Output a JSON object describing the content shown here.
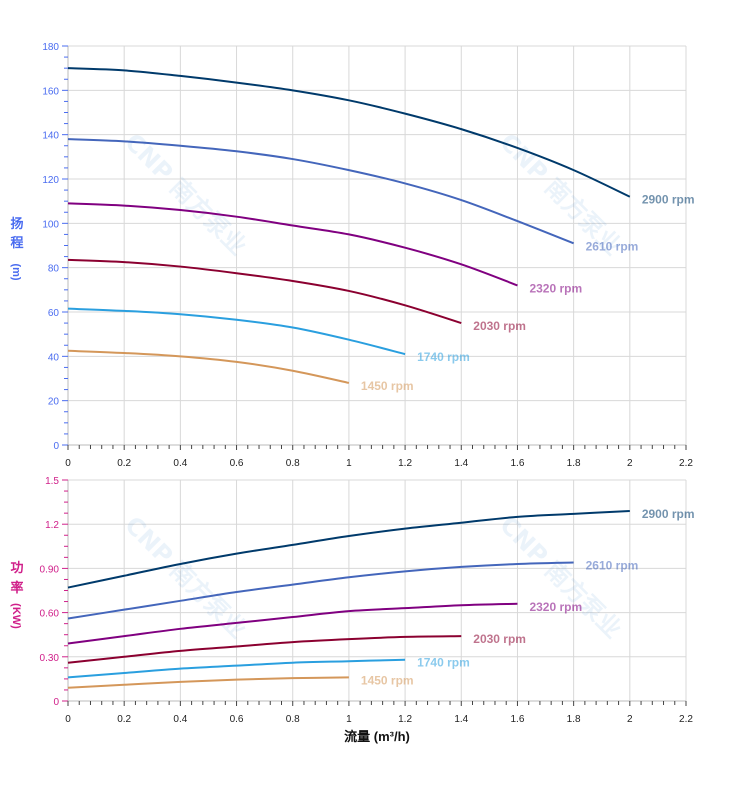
{
  "chart_data": [
    {
      "type": "line",
      "ylabel_chars": [
        "扬",
        "程"
      ],
      "ylabel_unit": "(m)",
      "xlim": [
        0,
        2.2
      ],
      "ylim": [
        0,
        180
      ],
      "xticks": [
        "0",
        "0.2",
        "0.4",
        "0.6",
        "0.8",
        "1",
        "1.2",
        "1.4",
        "1.6",
        "1.8",
        "2",
        "2.2"
      ],
      "yticks": [
        "0",
        "20",
        "40",
        "60",
        "80",
        "100",
        "120",
        "140",
        "160",
        "180"
      ],
      "grid": true,
      "axis_color": "#4a6cf0",
      "series": [
        {
          "name": "2900 rpm",
          "color": "#003a6b",
          "x": [
            0,
            0.2,
            0.4,
            0.6,
            0.8,
            1.0,
            1.2,
            1.4,
            1.6,
            1.8,
            2.0
          ],
          "y": [
            170,
            169,
            166.5,
            163.5,
            160,
            155.5,
            149.5,
            142.5,
            134,
            124,
            112
          ]
        },
        {
          "name": "2610 rpm",
          "color": "#4466bb",
          "x": [
            0,
            0.2,
            0.4,
            0.6,
            0.8,
            1.0,
            1.2,
            1.4,
            1.6,
            1.8
          ],
          "y": [
            138,
            137,
            135,
            132.5,
            129,
            124,
            118,
            110.5,
            101,
            91
          ]
        },
        {
          "name": "2320 rpm",
          "color": "#800080",
          "x": [
            0,
            0.2,
            0.4,
            0.6,
            0.8,
            1.0,
            1.2,
            1.4,
            1.6
          ],
          "y": [
            109,
            108,
            106,
            103,
            99,
            95,
            89,
            81.5,
            72
          ]
        },
        {
          "name": "2030 rpm",
          "color": "#8b0030",
          "x": [
            0,
            0.2,
            0.4,
            0.6,
            0.8,
            1.0,
            1.2,
            1.4
          ],
          "y": [
            83.5,
            82.5,
            80.5,
            77.5,
            74,
            69.5,
            63,
            55
          ]
        },
        {
          "name": "1740 rpm",
          "color": "#2a9fdf",
          "x": [
            0,
            0.2,
            0.4,
            0.6,
            0.8,
            1.0,
            1.2
          ],
          "y": [
            61.5,
            60.5,
            59,
            56.5,
            53,
            47.5,
            41
          ]
        },
        {
          "name": "1450 rpm",
          "color": "#d4975a",
          "x": [
            0,
            0.2,
            0.4,
            0.6,
            0.8,
            1.0
          ],
          "y": [
            42.5,
            41.5,
            40,
            37.5,
            33.5,
            28
          ]
        }
      ]
    },
    {
      "type": "line",
      "xlabel": "流量 (m³/h)",
      "ylabel_chars": [
        "功",
        "率"
      ],
      "ylabel_unit": "(KW)",
      "xlim": [
        0,
        2.2
      ],
      "ylim": [
        0,
        1.5
      ],
      "xticks": [
        "0",
        "0.2",
        "0.4",
        "0.6",
        "0.8",
        "1",
        "1.2",
        "1.4",
        "1.6",
        "1.8",
        "2",
        "2.2"
      ],
      "yticks": [
        "0",
        "0.30",
        "0.60",
        "0.90",
        "1.2",
        "1.5"
      ],
      "grid": true,
      "axis_color": "#d0208a",
      "series": [
        {
          "name": "2900 rpm",
          "color": "#003a6b",
          "x": [
            0,
            0.2,
            0.4,
            0.6,
            0.8,
            1.0,
            1.2,
            1.4,
            1.6,
            1.8,
            2.0
          ],
          "y": [
            0.77,
            0.85,
            0.93,
            1.0,
            1.06,
            1.12,
            1.17,
            1.21,
            1.25,
            1.27,
            1.29
          ]
        },
        {
          "name": "2610 rpm",
          "color": "#4466bb",
          "x": [
            0,
            0.2,
            0.4,
            0.6,
            0.8,
            1.0,
            1.2,
            1.4,
            1.6,
            1.8
          ],
          "y": [
            0.56,
            0.62,
            0.68,
            0.74,
            0.79,
            0.84,
            0.88,
            0.91,
            0.93,
            0.94
          ]
        },
        {
          "name": "2320 rpm",
          "color": "#800080",
          "x": [
            0,
            0.2,
            0.4,
            0.6,
            0.8,
            1.0,
            1.2,
            1.4,
            1.6
          ],
          "y": [
            0.39,
            0.44,
            0.49,
            0.53,
            0.57,
            0.61,
            0.63,
            0.65,
            0.66
          ]
        },
        {
          "name": "2030 rpm",
          "color": "#8b0030",
          "x": [
            0,
            0.2,
            0.4,
            0.6,
            0.8,
            1.0,
            1.2,
            1.4
          ],
          "y": [
            0.26,
            0.3,
            0.34,
            0.37,
            0.4,
            0.42,
            0.435,
            0.44
          ]
        },
        {
          "name": "1740 rpm",
          "color": "#2a9fdf",
          "x": [
            0,
            0.2,
            0.4,
            0.6,
            0.8,
            1.0,
            1.2
          ],
          "y": [
            0.16,
            0.19,
            0.22,
            0.24,
            0.26,
            0.27,
            0.28
          ]
        },
        {
          "name": "1450 rpm",
          "color": "#d4975a",
          "x": [
            0,
            0.2,
            0.4,
            0.6,
            0.8,
            1.0
          ],
          "y": [
            0.09,
            0.11,
            0.13,
            0.145,
            0.155,
            0.16
          ]
        }
      ]
    }
  ],
  "watermark": "CNP 南方泵业"
}
